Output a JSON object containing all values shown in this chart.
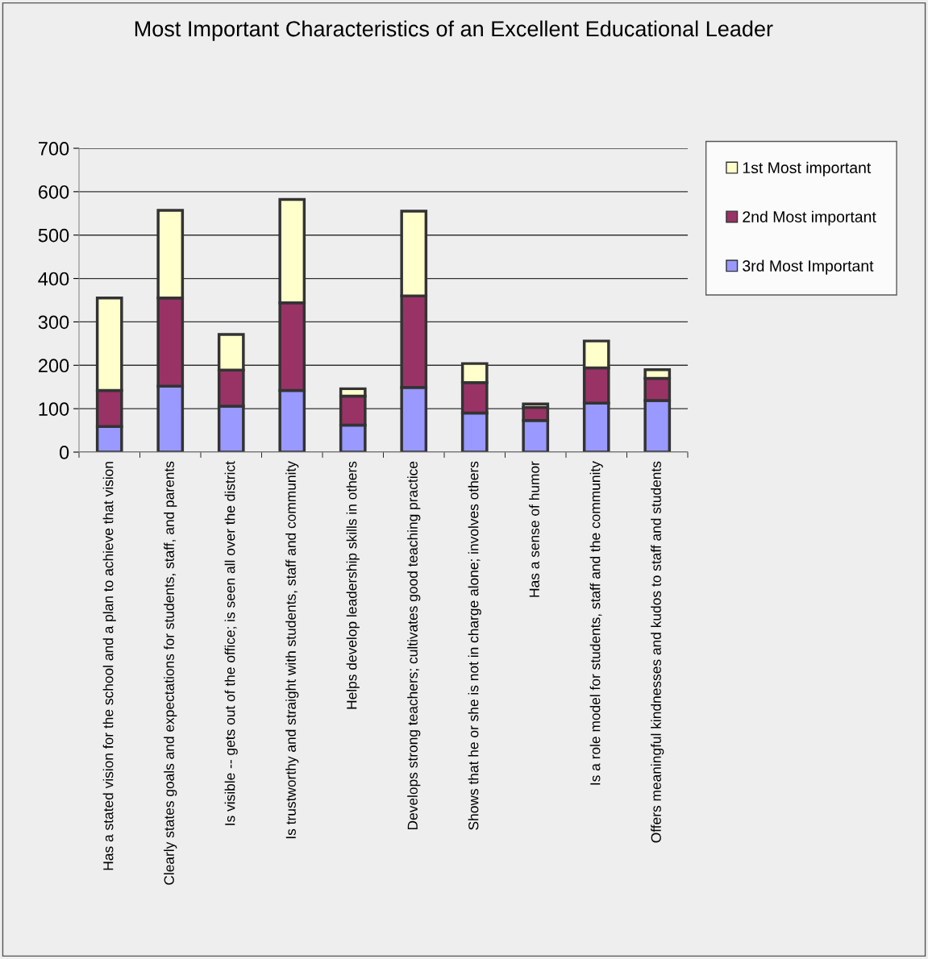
{
  "chart_data": {
    "type": "bar",
    "title": "Most Important Characteristics of an Excellent Educational Leader",
    "categories": [
      "Has a stated vision for the school and a plan to achieve that vision",
      "Clearly states goals and expectations for students, staff, and parents",
      "Is visible -- gets out of the office; is seen all over the district",
      "Is trustworthy and straight with students, staff and community",
      "Helps develop leadership skills in others",
      "Develops strong teachers; cultivates good teaching practice",
      "Shows that he or she is not in charge alone; involves others",
      "Has a sense of humor",
      "Is a role model for students, staff and the community",
      "Offers meaningful kindnesses and kudos to staff and students"
    ],
    "series": [
      {
        "name": "3rd Most Important",
        "color": "#9999ff",
        "values": [
          59,
          152,
          106,
          142,
          62,
          149,
          90,
          73,
          113,
          119
        ]
      },
      {
        "name": "2nd Most important",
        "color": "#993366",
        "values": [
          83,
          203,
          83,
          202,
          67,
          211,
          70,
          30,
          81,
          51
        ]
      },
      {
        "name": "1st Most important",
        "color": "#ffffcc",
        "values": [
          213,
          202,
          82,
          238,
          17,
          195,
          44,
          8,
          62,
          20
        ]
      }
    ],
    "stacked": true,
    "ylim": [
      0,
      700
    ],
    "yticks": [
      0,
      100,
      200,
      300,
      400,
      500,
      600,
      700
    ],
    "grid": "y",
    "legend": "right"
  }
}
